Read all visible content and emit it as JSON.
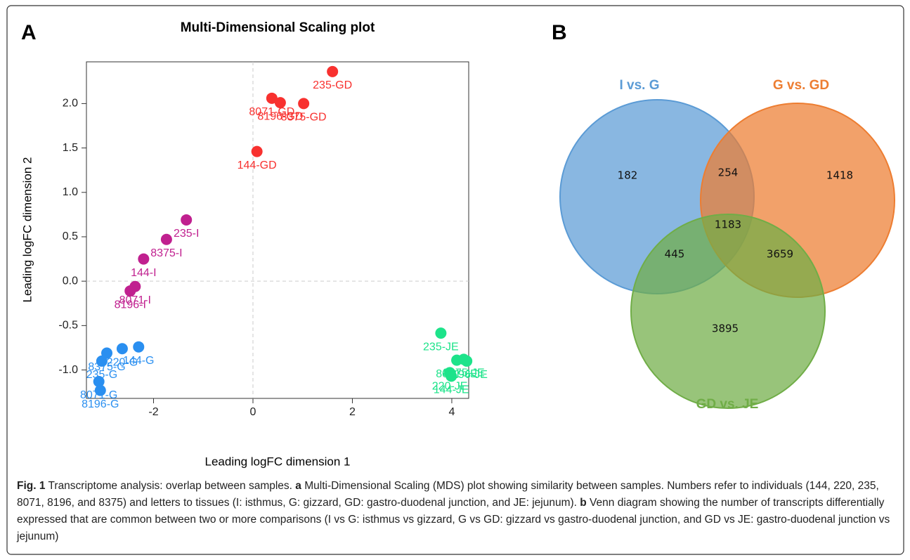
{
  "chart_data": [
    {
      "type": "scatter",
      "panel": "A",
      "title": "Multi-Dimensional Scaling plot",
      "xlabel": "Leading logFC dimension 1",
      "ylabel": "Leading logFC dimension 2",
      "xlim": [
        -3.35,
        4.34
      ],
      "ylim": [
        -1.32,
        2.47
      ],
      "xticks": [
        -2,
        0,
        2,
        4
      ],
      "yticks": [
        {
          "value": -1,
          "label": "-1.0"
        },
        -0.5,
        {
          "value": 0,
          "label": "0.0"
        },
        0.5,
        {
          "value": 1,
          "label": "1.0"
        },
        1.5,
        {
          "value": 2,
          "label": "2.0"
        }
      ],
      "zero_lines": true,
      "series": [
        {
          "color": "#f8312f",
          "labels": [
            "235-GD",
            "8071-GD",
            "8196-GD",
            "8375-GD",
            "144-GD"
          ],
          "x": [
            1.6,
            0.38,
            0.55,
            1.02,
            0.08
          ],
          "y": [
            2.36,
            2.06,
            2.01,
            2.0,
            1.46
          ]
        },
        {
          "color": "#c0208f",
          "labels": [
            "235-I",
            "8375-I",
            "144-I",
            "8071-I",
            "8196-I"
          ],
          "x": [
            -1.34,
            -1.74,
            -2.2,
            -2.37,
            -2.47
          ],
          "y": [
            0.69,
            0.47,
            0.25,
            -0.06,
            -0.11
          ]
        },
        {
          "color": "#2a8ff0",
          "labels": [
            "144-G",
            "220-G",
            "8375-G",
            "235-G",
            "8071-G",
            "8196-G"
          ],
          "x": [
            -2.3,
            -2.63,
            -2.94,
            -3.04,
            -3.1,
            -3.07
          ],
          "y": [
            -0.74,
            -0.76,
            -0.81,
            -0.9,
            -1.13,
            -1.23
          ]
        },
        {
          "color": "#1de38a",
          "labels": [
            "235-JE",
            "8071-JE",
            "8375-JE",
            "8196-JE",
            "220-JE",
            "144-JE"
          ],
          "x": [
            3.78,
            4.1,
            4.24,
            4.3,
            3.96,
            3.99
          ],
          "y": [
            -0.585,
            -0.89,
            -0.88,
            -0.9,
            -1.03,
            -1.07
          ]
        }
      ]
    },
    {
      "type": "venn",
      "panel": "B",
      "sets": [
        {
          "name": "I vs. G",
          "color": "#5b9bd5"
        },
        {
          "name": "G vs. GD",
          "color": "#ed7d31"
        },
        {
          "name": "GD vs. JE",
          "color": "#70ad47"
        }
      ],
      "regions": [
        {
          "sets": [
            0
          ],
          "value": 182
        },
        {
          "sets": [
            1
          ],
          "value": 1418
        },
        {
          "sets": [
            2
          ],
          "value": 3895
        },
        {
          "sets": [
            0,
            1
          ],
          "value": 254
        },
        {
          "sets": [
            0,
            2
          ],
          "value": 445
        },
        {
          "sets": [
            1,
            2
          ],
          "value": 3659
        },
        {
          "sets": [
            0,
            1,
            2
          ],
          "value": 1183
        }
      ]
    }
  ],
  "caption": {
    "fig": "Fig. 1",
    "text1": " Transcriptome analysis: overlap between samples. ",
    "a": "a",
    "text2": " Multi-Dimensional Scaling (MDS) plot showing similarity between samples. Numbers refer to individuals (144, 220, 235, 8071, 8196, and 8375) and letters to tissues (I: isthmus, G: gizzard, GD: gastro-duodenal junction, and JE: jejunum). ",
    "b": "b",
    "text3": " Venn diagram showing the number of transcripts differentially expressed that are common between two or more comparisons (I vs G: isthmus vs gizzard, G vs GD: gizzard vs gastro-duodenal junction, and GD vs JE: gastro-duodenal junction vs jejunum)"
  }
}
